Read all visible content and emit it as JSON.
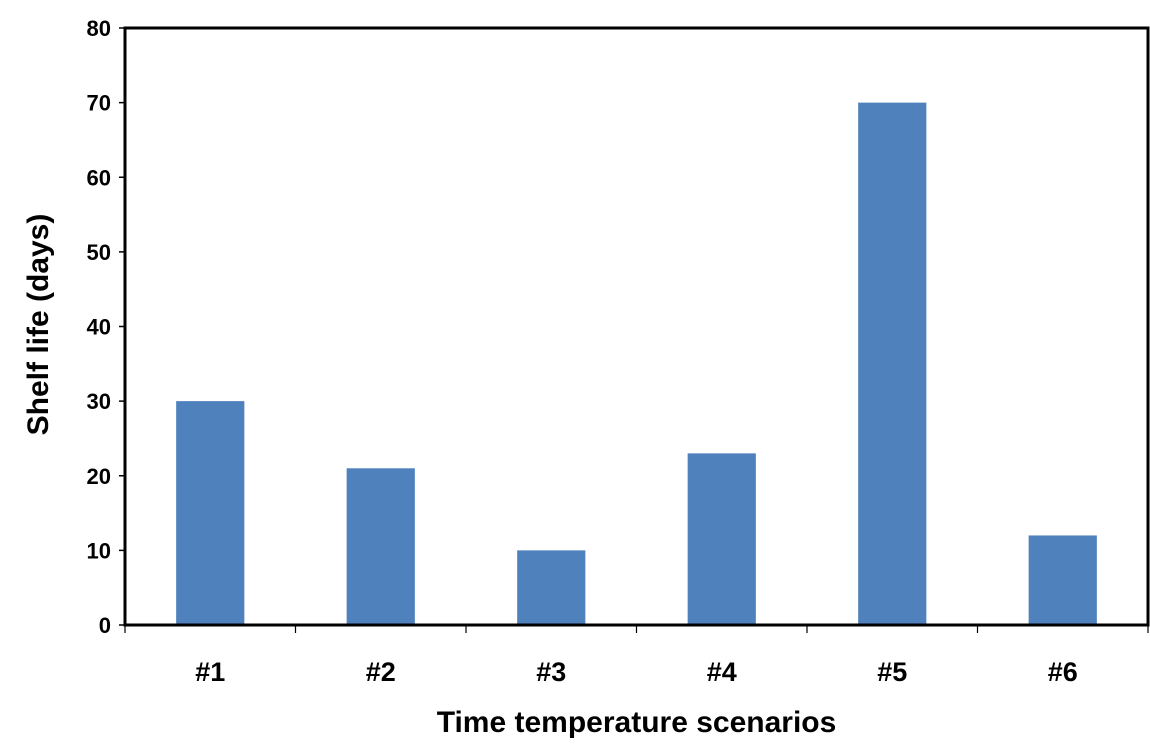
{
  "chart_data": {
    "type": "bar",
    "title": "",
    "xlabel": "Time temperature scenarios",
    "ylabel": "Shelf life (days)",
    "categories": [
      "#1",
      "#2",
      "#3",
      "#4",
      "#5",
      "#6"
    ],
    "values": [
      30,
      21,
      10,
      23,
      70,
      12
    ],
    "ylim": [
      0,
      80
    ],
    "yticks": [
      0,
      10,
      20,
      30,
      40,
      50,
      60,
      70,
      80
    ],
    "grid": false,
    "legend": "none",
    "bar_color": "#4F81BD"
  }
}
